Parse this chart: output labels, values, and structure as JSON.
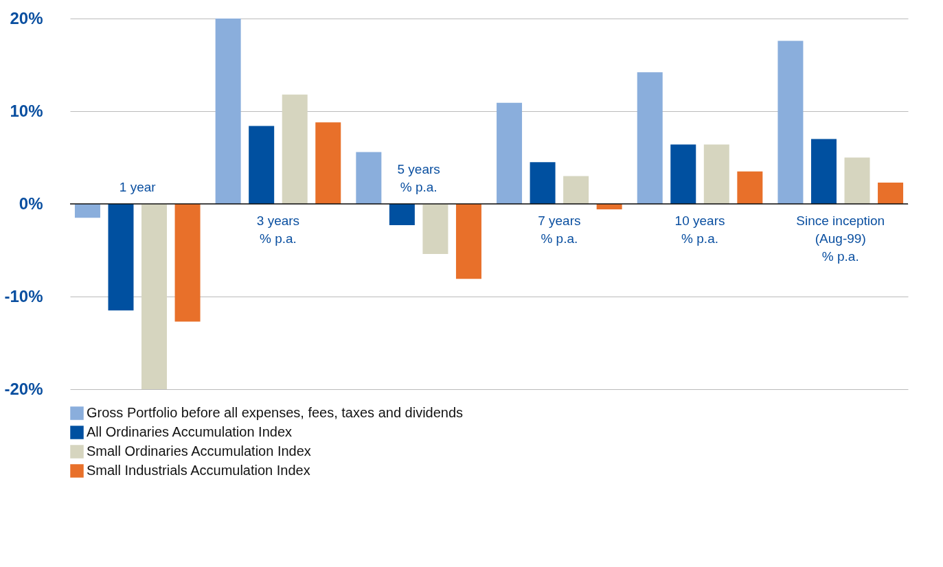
{
  "chart_data": {
    "type": "bar",
    "categories": [
      "1 year",
      "3 years\n% p.a.",
      "5 years\n% p.a.",
      "7 years\n% p.a.",
      "10 years\n% p.a.",
      "Since inception\n(Aug-99)\n% p.a."
    ],
    "series": [
      {
        "name": "Gross Portfolio before all expenses, fees, taxes and dividends",
        "color": "#8aaedc",
        "values": [
          -1.5,
          20.0,
          5.6,
          10.9,
          14.2,
          17.6
        ]
      },
      {
        "name": "All Ordinaries Accumulation Index",
        "color": "#0050a0",
        "values": [
          -11.5,
          8.4,
          -2.3,
          4.5,
          6.4,
          7.0
        ]
      },
      {
        "name": "Small Ordinaries Accumulation Index",
        "color": "#d6d5bf",
        "values": [
          -20.0,
          11.8,
          -5.4,
          3.0,
          6.4,
          5.0
        ]
      },
      {
        "name": "Small Industrials Accumulation Index",
        "color": "#e8702a",
        "values": [
          -12.7,
          8.8,
          -8.1,
          -0.6,
          3.5,
          2.3
        ]
      }
    ],
    "ylim": [
      -20,
      20
    ],
    "yticks": [
      {
        "value": -20,
        "label": "-20%"
      },
      {
        "value": -10,
        "label": "-10%"
      },
      {
        "value": 0,
        "label": "0%"
      },
      {
        "value": 10,
        "label": "10%"
      },
      {
        "value": 20,
        "label": "20%"
      }
    ],
    "grid": "y",
    "legend": "bottom"
  }
}
